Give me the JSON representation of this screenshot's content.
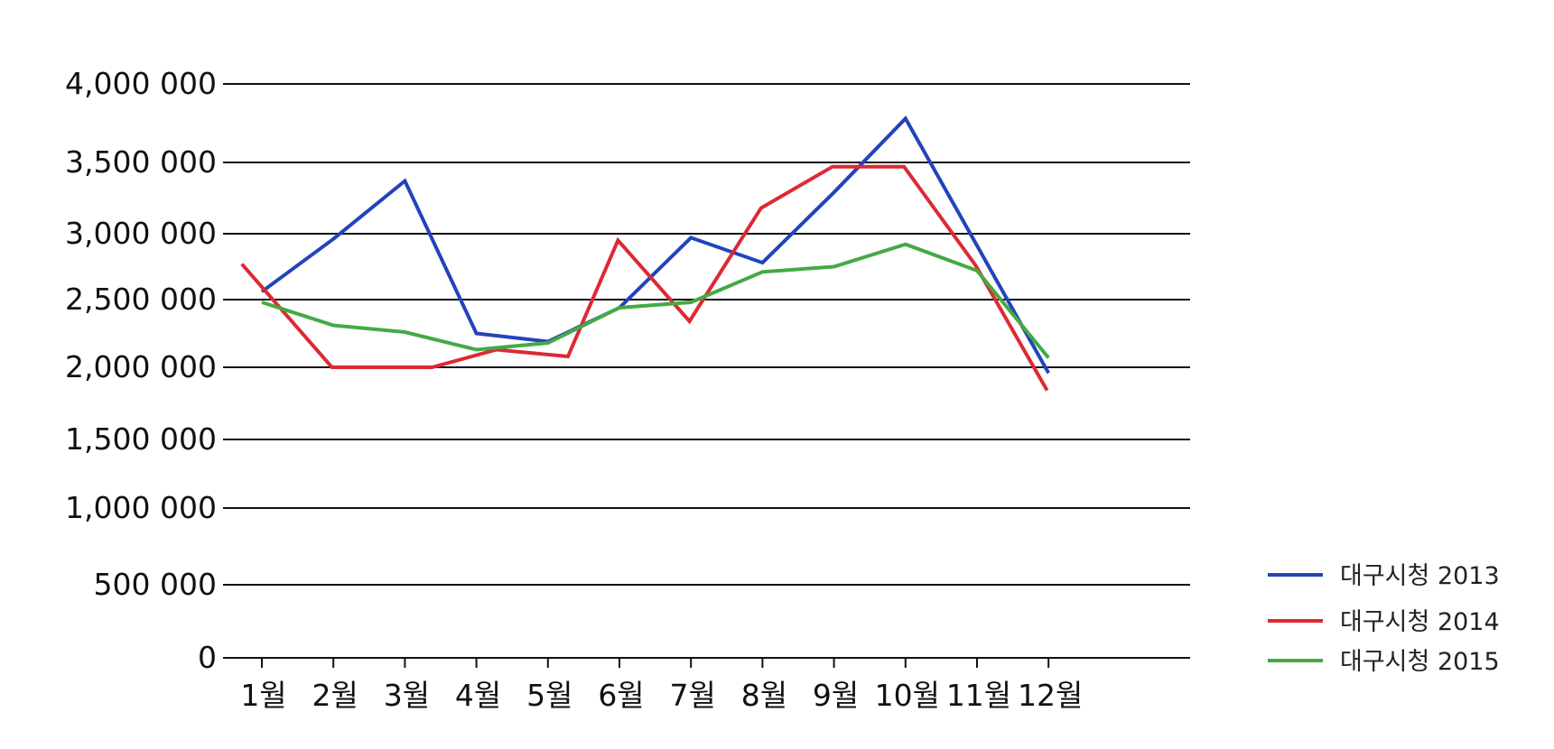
{
  "chart_data": {
    "type": "line",
    "title": "",
    "xlabel": "",
    "ylabel": "",
    "categories": [
      "1월",
      "2월",
      "3월",
      "4월",
      "5월",
      "6월",
      "7월",
      "8월",
      "9월",
      "10월",
      "11월",
      "12월"
    ],
    "y_tick_labels": [
      "0",
      "500 000",
      "1,000 000",
      "1,500 000",
      "2,000 000",
      "2,500 000",
      "3,000 000",
      "3,500 000",
      "4,000 000"
    ],
    "y_tick_values": [
      0,
      500000,
      1000000,
      1500000,
      2000000,
      2500000,
      3000000,
      3500000,
      4000000
    ],
    "ylim": [
      0,
      4000000
    ],
    "grid": true,
    "legend_position": "bottom-right",
    "series": [
      {
        "name": "대구시청 2013",
        "color": "#2244bb",
        "points": [
          [
            0,
            2560000
          ],
          [
            1,
            2960000
          ],
          [
            2,
            3370000
          ],
          [
            3,
            2250000
          ],
          [
            4,
            2190000
          ],
          [
            5,
            2440000
          ],
          [
            6,
            2970000
          ],
          [
            7,
            2780000
          ],
          [
            8,
            3290000
          ],
          [
            9,
            3780000
          ],
          [
            10,
            2910000
          ],
          [
            11,
            1960000
          ]
        ]
      },
      {
        "name": "대구시청 2014",
        "color": "#dd2a33",
        "points": [
          [
            -0.28,
            2770000
          ],
          [
            0.98,
            2000000
          ],
          [
            2.38,
            2000000
          ],
          [
            3.28,
            2130000
          ],
          [
            4.28,
            2080000
          ],
          [
            4.98,
            2950000
          ],
          [
            5.98,
            2340000
          ],
          [
            6.98,
            3180000
          ],
          [
            7.98,
            3470000
          ],
          [
            8.98,
            3470000
          ],
          [
            9.98,
            2760000
          ],
          [
            10.98,
            1840000
          ]
        ]
      },
      {
        "name": "대구시청 2015",
        "color": "#44aa44",
        "points": [
          [
            0,
            2480000
          ],
          [
            1,
            2310000
          ],
          [
            2,
            2260000
          ],
          [
            3,
            2130000
          ],
          [
            4,
            2180000
          ],
          [
            5,
            2440000
          ],
          [
            6,
            2480000
          ],
          [
            7,
            2710000
          ],
          [
            8,
            2750000
          ],
          [
            9,
            2920000
          ],
          [
            10,
            2720000
          ],
          [
            11,
            2070000
          ]
        ]
      }
    ]
  }
}
